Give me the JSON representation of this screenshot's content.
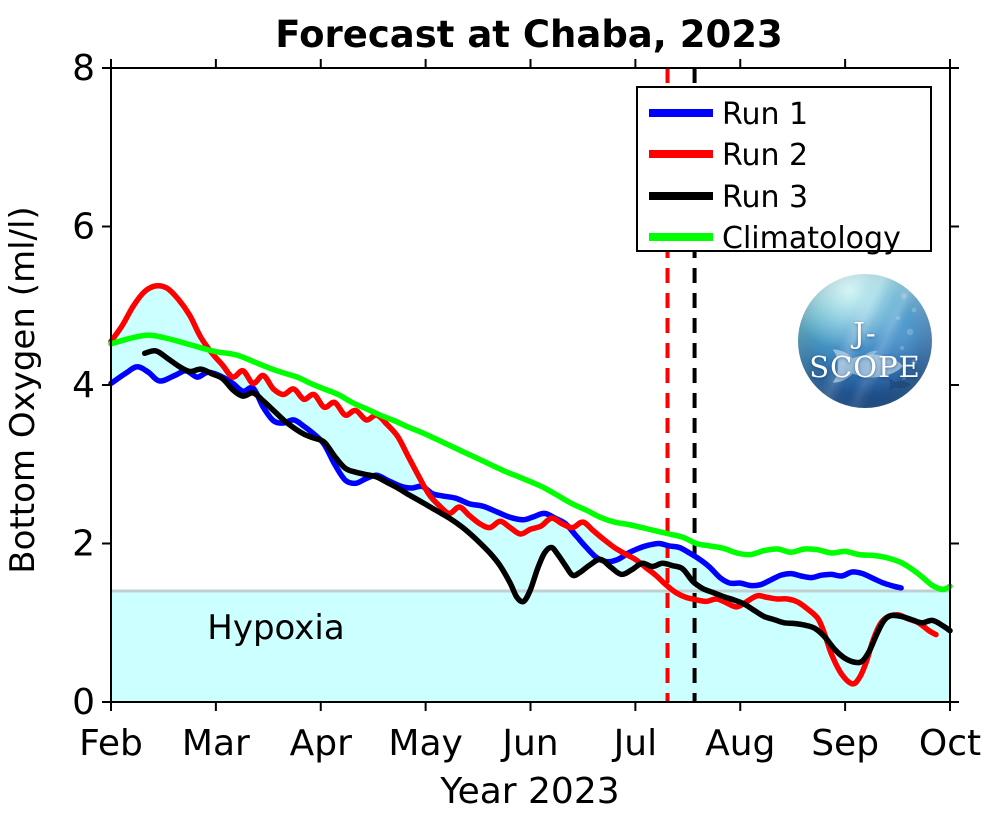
{
  "figure": {
    "background": "#ffffff"
  },
  "logo": {
    "text": "J-SCOPE"
  },
  "chart_data": {
    "type": "line",
    "title": "Forecast at Chaba, 2023",
    "xlabel": "Year 2023",
    "ylabel": "Bottom Oxygen (ml/l)",
    "ylim": [
      0,
      8
    ],
    "y_ticks": [
      0,
      2,
      4,
      6,
      8
    ],
    "x_tick_labels": [
      "Feb",
      "Mar",
      "Apr",
      "May",
      "Jun",
      "Jul",
      "Aug",
      "Sep",
      "Oct"
    ],
    "month_boundaries_days": [
      0,
      28,
      59,
      89,
      120,
      150,
      181,
      212,
      242
    ],
    "grid": false,
    "legend": {
      "position": "top-right",
      "entries": [
        "Run 1",
        "Run 2",
        "Run 3",
        "Climatology"
      ]
    },
    "hypoxia_band": {
      "label": "Hypoxia",
      "threshold": 1.4,
      "fill": "#ccffff",
      "edge_color": "#bfd0d3"
    },
    "ensemble_envelope": {
      "fill": "#ccffff",
      "start_day": 0,
      "end_day": 228,
      "includes": [
        "Run 1",
        "Run 2",
        "Run 3"
      ]
    },
    "forecast_markers": [
      {
        "day": 159.5,
        "approx_date": "Jul 10",
        "color": "#ff0000",
        "style": "dashed"
      },
      {
        "day": 167.5,
        "approx_date": "Jul 18",
        "color": "#000000",
        "style": "dashed"
      }
    ],
    "x_unit": "days since Feb 1, 2023",
    "series": [
      {
        "name": "Run 1",
        "color": "#0000ff",
        "role": "run",
        "width": 5.5,
        "points": [
          [
            0,
            4.02
          ],
          [
            4,
            4.15
          ],
          [
            7,
            4.23
          ],
          [
            10,
            4.16
          ],
          [
            13,
            4.05
          ],
          [
            17,
            4.12
          ],
          [
            20,
            4.18
          ],
          [
            23,
            4.1
          ],
          [
            26,
            4.16
          ],
          [
            30,
            4.1
          ],
          [
            33,
            4.02
          ],
          [
            36,
            3.92
          ],
          [
            39,
            3.96
          ],
          [
            42,
            3.72
          ],
          [
            45,
            3.55
          ],
          [
            48,
            3.52
          ],
          [
            51,
            3.56
          ],
          [
            54,
            3.48
          ],
          [
            57,
            3.38
          ],
          [
            60,
            3.25
          ],
          [
            63,
            3.0
          ],
          [
            66,
            2.8
          ],
          [
            69,
            2.76
          ],
          [
            72,
            2.82
          ],
          [
            75,
            2.86
          ],
          [
            78,
            2.8
          ],
          [
            82,
            2.72
          ],
          [
            85,
            2.7
          ],
          [
            88,
            2.72
          ],
          [
            91,
            2.63
          ],
          [
            94,
            2.6
          ],
          [
            98,
            2.57
          ],
          [
            102,
            2.5
          ],
          [
            106,
            2.47
          ],
          [
            110,
            2.4
          ],
          [
            114,
            2.33
          ],
          [
            118,
            2.3
          ],
          [
            121,
            2.34
          ],
          [
            124,
            2.38
          ],
          [
            127,
            2.32
          ],
          [
            130,
            2.25
          ],
          [
            133,
            2.1
          ],
          [
            136,
            1.95
          ],
          [
            139,
            1.82
          ],
          [
            142,
            1.77
          ],
          [
            145,
            1.8
          ],
          [
            148,
            1.88
          ],
          [
            151,
            1.94
          ],
          [
            154,
            1.98
          ],
          [
            157,
            2.0
          ],
          [
            160,
            1.97
          ],
          [
            163,
            1.95
          ],
          [
            166,
            1.88
          ],
          [
            169,
            1.8
          ],
          [
            172,
            1.7
          ],
          [
            175,
            1.57
          ],
          [
            178,
            1.5
          ],
          [
            181,
            1.5
          ],
          [
            184,
            1.47
          ],
          [
            187,
            1.48
          ],
          [
            190,
            1.54
          ],
          [
            193,
            1.6
          ],
          [
            196,
            1.62
          ],
          [
            199,
            1.59
          ],
          [
            202,
            1.57
          ],
          [
            205,
            1.6
          ],
          [
            208,
            1.61
          ],
          [
            211,
            1.59
          ],
          [
            214,
            1.64
          ],
          [
            217,
            1.62
          ],
          [
            220,
            1.56
          ],
          [
            223,
            1.5
          ],
          [
            226,
            1.46
          ],
          [
            228,
            1.44
          ]
        ]
      },
      {
        "name": "Run 2",
        "color": "#ff0000",
        "role": "run",
        "width": 5.5,
        "points": [
          [
            0,
            4.55
          ],
          [
            3,
            4.75
          ],
          [
            6,
            5.0
          ],
          [
            9,
            5.18
          ],
          [
            12,
            5.25
          ],
          [
            15,
            5.22
          ],
          [
            18,
            5.08
          ],
          [
            21,
            4.88
          ],
          [
            24,
            4.6
          ],
          [
            27,
            4.4
          ],
          [
            30,
            4.25
          ],
          [
            33,
            4.1
          ],
          [
            36,
            4.18
          ],
          [
            39,
            4.02
          ],
          [
            42,
            4.12
          ],
          [
            45,
            3.95
          ],
          [
            48,
            3.88
          ],
          [
            51,
            3.95
          ],
          [
            54,
            3.82
          ],
          [
            57,
            3.88
          ],
          [
            60,
            3.72
          ],
          [
            63,
            3.78
          ],
          [
            66,
            3.62
          ],
          [
            69,
            3.68
          ],
          [
            72,
            3.56
          ],
          [
            75,
            3.62
          ],
          [
            78,
            3.5
          ],
          [
            81,
            3.35
          ],
          [
            84,
            3.1
          ],
          [
            87,
            2.85
          ],
          [
            90,
            2.62
          ],
          [
            93,
            2.48
          ],
          [
            96,
            2.38
          ],
          [
            99,
            2.46
          ],
          [
            102,
            2.35
          ],
          [
            105,
            2.25
          ],
          [
            108,
            2.2
          ],
          [
            111,
            2.28
          ],
          [
            114,
            2.2
          ],
          [
            117,
            2.12
          ],
          [
            120,
            2.18
          ],
          [
            123,
            2.22
          ],
          [
            126,
            2.32
          ],
          [
            129,
            2.25
          ],
          [
            132,
            2.2
          ],
          [
            135,
            2.27
          ],
          [
            138,
            2.16
          ],
          [
            141,
            2.05
          ],
          [
            144,
            1.95
          ],
          [
            147,
            1.87
          ],
          [
            150,
            1.8
          ],
          [
            153,
            1.7
          ],
          [
            156,
            1.6
          ],
          [
            159,
            1.48
          ],
          [
            162,
            1.38
          ],
          [
            165,
            1.32
          ],
          [
            168,
            1.29
          ],
          [
            171,
            1.27
          ],
          [
            174,
            1.3
          ],
          [
            177,
            1.25
          ],
          [
            180,
            1.2
          ],
          [
            183,
            1.27
          ],
          [
            186,
            1.34
          ],
          [
            189,
            1.32
          ],
          [
            192,
            1.3
          ],
          [
            195,
            1.3
          ],
          [
            198,
            1.26
          ],
          [
            201,
            1.17
          ],
          [
            204,
            1.05
          ],
          [
            206,
            0.85
          ],
          [
            208,
            0.6
          ],
          [
            211,
            0.35
          ],
          [
            214,
            0.23
          ],
          [
            216,
            0.3
          ],
          [
            218,
            0.5
          ],
          [
            220,
            0.78
          ],
          [
            222,
            0.98
          ],
          [
            224,
            1.07
          ],
          [
            227,
            1.1
          ],
          [
            230,
            1.05
          ],
          [
            233,
            1.0
          ],
          [
            236,
            0.9
          ],
          [
            238,
            0.85
          ]
        ]
      },
      {
        "name": "Run 3",
        "color": "#000000",
        "role": "run",
        "width": 5.5,
        "points": [
          [
            9,
            4.4
          ],
          [
            12,
            4.43
          ],
          [
            15,
            4.34
          ],
          [
            18,
            4.24
          ],
          [
            21,
            4.17
          ],
          [
            24,
            4.2
          ],
          [
            27,
            4.14
          ],
          [
            30,
            4.08
          ],
          [
            33,
            3.94
          ],
          [
            36,
            3.86
          ],
          [
            39,
            3.9
          ],
          [
            42,
            3.8
          ],
          [
            45,
            3.68
          ],
          [
            48,
            3.56
          ],
          [
            51,
            3.46
          ],
          [
            54,
            3.38
          ],
          [
            57,
            3.33
          ],
          [
            60,
            3.28
          ],
          [
            63,
            3.1
          ],
          [
            66,
            2.95
          ],
          [
            69,
            2.9
          ],
          [
            72,
            2.87
          ],
          [
            75,
            2.84
          ],
          [
            78,
            2.77
          ],
          [
            81,
            2.7
          ],
          [
            84,
            2.62
          ],
          [
            88,
            2.52
          ],
          [
            92,
            2.42
          ],
          [
            96,
            2.32
          ],
          [
            100,
            2.2
          ],
          [
            104,
            2.05
          ],
          [
            108,
            1.88
          ],
          [
            111,
            1.72
          ],
          [
            114,
            1.5
          ],
          [
            116,
            1.32
          ],
          [
            118,
            1.27
          ],
          [
            120,
            1.42
          ],
          [
            122,
            1.68
          ],
          [
            124,
            1.88
          ],
          [
            126,
            1.95
          ],
          [
            128,
            1.85
          ],
          [
            130,
            1.72
          ],
          [
            132,
            1.6
          ],
          [
            134,
            1.63
          ],
          [
            137,
            1.73
          ],
          [
            140,
            1.8
          ],
          [
            143,
            1.7
          ],
          [
            146,
            1.61
          ],
          [
            149,
            1.67
          ],
          [
            152,
            1.75
          ],
          [
            155,
            1.71
          ],
          [
            158,
            1.75
          ],
          [
            161,
            1.72
          ],
          [
            164,
            1.68
          ],
          [
            167,
            1.52
          ],
          [
            170,
            1.43
          ],
          [
            173,
            1.38
          ],
          [
            176,
            1.33
          ],
          [
            179,
            1.29
          ],
          [
            182,
            1.24
          ],
          [
            185,
            1.16
          ],
          [
            188,
            1.08
          ],
          [
            191,
            1.04
          ],
          [
            194,
            1.0
          ],
          [
            197,
            0.99
          ],
          [
            200,
            0.97
          ],
          [
            203,
            0.93
          ],
          [
            206,
            0.82
          ],
          [
            209,
            0.66
          ],
          [
            212,
            0.55
          ],
          [
            215,
            0.5
          ],
          [
            217,
            0.52
          ],
          [
            219,
            0.65
          ],
          [
            221,
            0.85
          ],
          [
            223,
            1.02
          ],
          [
            225,
            1.09
          ],
          [
            228,
            1.08
          ],
          [
            231,
            1.04
          ],
          [
            234,
            1.0
          ],
          [
            237,
            1.03
          ],
          [
            240,
            0.96
          ],
          [
            242,
            0.9
          ]
        ]
      },
      {
        "name": "Climatology",
        "color": "#00ff00",
        "role": "climatology",
        "width": 5.5,
        "points": [
          [
            0,
            4.52
          ],
          [
            6,
            4.6
          ],
          [
            10,
            4.63
          ],
          [
            14,
            4.6
          ],
          [
            18,
            4.55
          ],
          [
            24,
            4.47
          ],
          [
            28,
            4.42
          ],
          [
            34,
            4.38
          ],
          [
            40,
            4.28
          ],
          [
            46,
            4.18
          ],
          [
            52,
            4.1
          ],
          [
            56,
            4.02
          ],
          [
            60,
            3.95
          ],
          [
            64,
            3.88
          ],
          [
            68,
            3.78
          ],
          [
            72,
            3.7
          ],
          [
            76,
            3.62
          ],
          [
            80,
            3.55
          ],
          [
            84,
            3.47
          ],
          [
            88,
            3.4
          ],
          [
            92,
            3.32
          ],
          [
            96,
            3.24
          ],
          [
            100,
            3.16
          ],
          [
            104,
            3.08
          ],
          [
            108,
            3.0
          ],
          [
            112,
            2.92
          ],
          [
            116,
            2.85
          ],
          [
            120,
            2.78
          ],
          [
            124,
            2.7
          ],
          [
            128,
            2.6
          ],
          [
            132,
            2.5
          ],
          [
            136,
            2.42
          ],
          [
            140,
            2.33
          ],
          [
            144,
            2.27
          ],
          [
            148,
            2.24
          ],
          [
            152,
            2.2
          ],
          [
            156,
            2.16
          ],
          [
            160,
            2.12
          ],
          [
            164,
            2.08
          ],
          [
            168,
            2.0
          ],
          [
            172,
            1.97
          ],
          [
            176,
            1.94
          ],
          [
            180,
            1.88
          ],
          [
            184,
            1.86
          ],
          [
            188,
            1.91
          ],
          [
            192,
            1.93
          ],
          [
            196,
            1.89
          ],
          [
            200,
            1.93
          ],
          [
            204,
            1.92
          ],
          [
            208,
            1.88
          ],
          [
            212,
            1.9
          ],
          [
            216,
            1.86
          ],
          [
            220,
            1.85
          ],
          [
            224,
            1.82
          ],
          [
            228,
            1.76
          ],
          [
            231,
            1.68
          ],
          [
            234,
            1.58
          ],
          [
            237,
            1.47
          ],
          [
            240,
            1.42
          ],
          [
            242,
            1.46
          ]
        ]
      }
    ]
  }
}
